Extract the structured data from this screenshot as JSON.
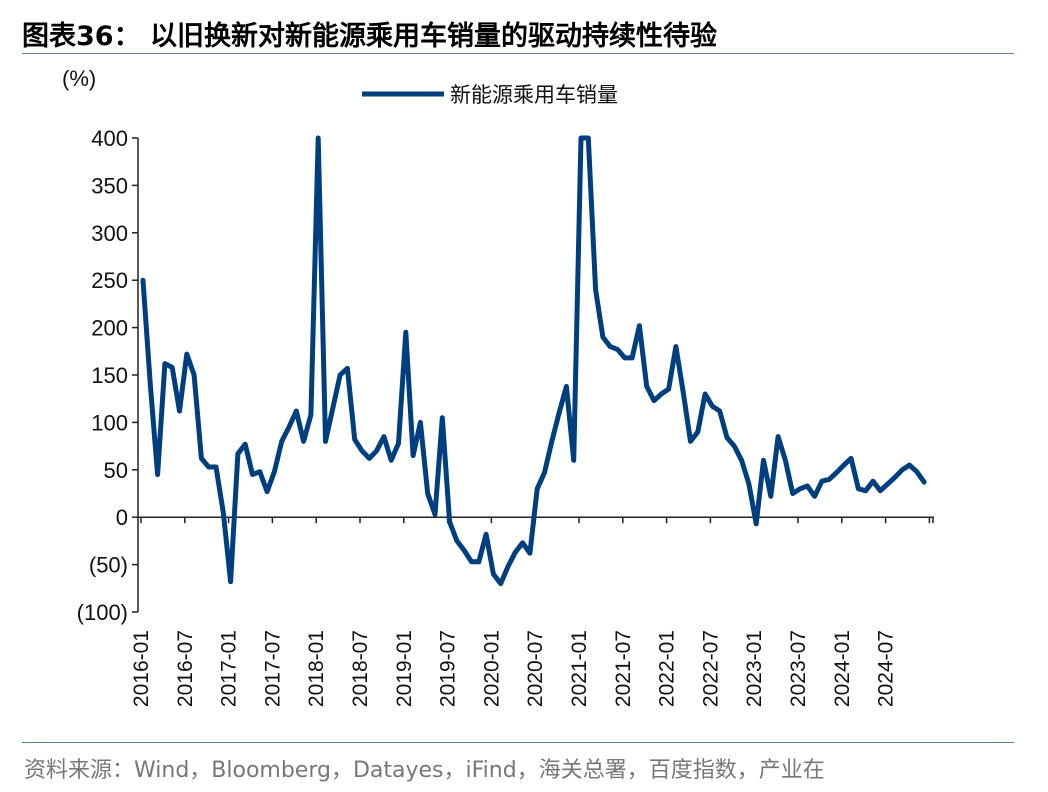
{
  "header": {
    "title": "图表36： 以旧换新对新能源乘用车销量的驱动持续性待验"
  },
  "footer": {
    "source": "资料来源：Wind，Bloomberg，Datayes，iFind，海关总署，百度指数，产业在"
  },
  "chart_data": {
    "type": "line",
    "unit": "(%)",
    "ylim": [
      -100,
      400
    ],
    "y_ticks": [
      400,
      350,
      300,
      250,
      200,
      150,
      100,
      50,
      0,
      -50,
      -100
    ],
    "y_tick_labels": [
      "400",
      "350",
      "300",
      "250",
      "200",
      "150",
      "100",
      "50",
      "0",
      "(50)",
      "(100)"
    ],
    "x_tick_labels": [
      "2016-01",
      "2016-07",
      "2017-01",
      "2017-07",
      "2018-01",
      "2018-07",
      "2019-01",
      "2019-07",
      "2020-01",
      "2020-07",
      "2021-01",
      "2021-07",
      "2022-01",
      "2022-07",
      "2023-01",
      "2023-07",
      "2024-01",
      "2024-07"
    ],
    "x_start": "2016-01",
    "color": "#003f7f",
    "legend": "top-center",
    "series": [
      {
        "name": "新能源乘用车销量",
        "values": [
          250,
          140,
          45,
          162,
          158,
          112,
          172,
          150,
          62,
          53,
          53,
          5,
          -68,
          67,
          77,
          45,
          48,
          27,
          48,
          80,
          95,
          112,
          80,
          108,
          400,
          80,
          115,
          150,
          157,
          82,
          70,
          62,
          70,
          85,
          60,
          78,
          195,
          65,
          100,
          25,
          3,
          105,
          -5,
          -25,
          -35,
          -47,
          -47,
          -18,
          -60,
          -70,
          -52,
          -37,
          -27,
          -38,
          30,
          47,
          80,
          110,
          138,
          60,
          400,
          400,
          240,
          190,
          180,
          177,
          168,
          168,
          202,
          138,
          123,
          130,
          135,
          180,
          132,
          80,
          90,
          130,
          117,
          112,
          84,
          75,
          60,
          35,
          -7,
          60,
          22,
          85,
          60,
          25,
          30,
          33,
          22,
          38,
          40,
          47,
          55,
          62,
          30,
          28,
          38,
          28,
          35,
          42,
          50,
          55,
          48,
          37
        ]
      }
    ]
  }
}
